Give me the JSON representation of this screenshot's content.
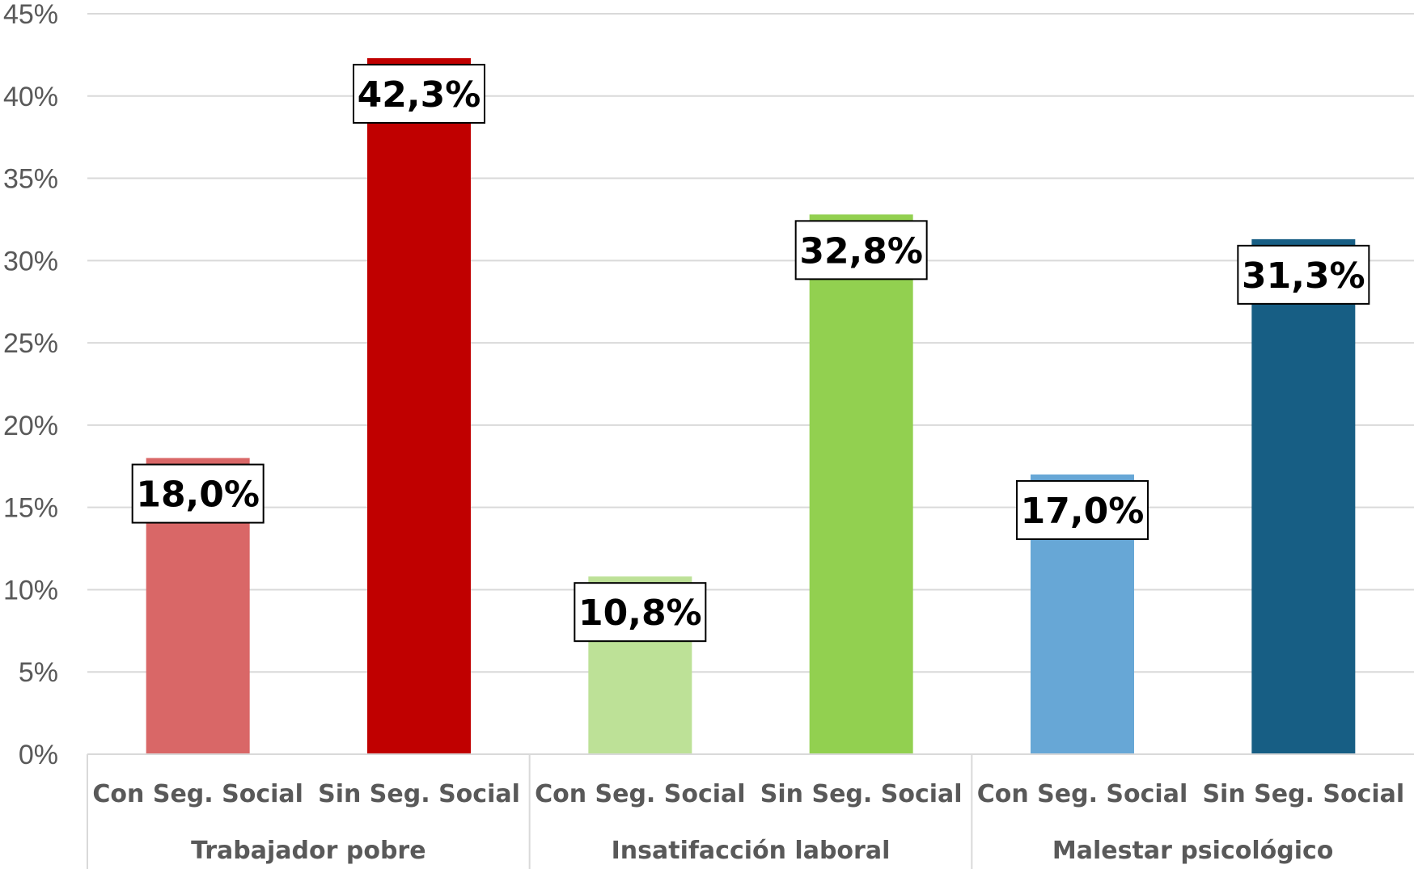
{
  "chart_data": {
    "type": "bar",
    "title": "",
    "xlabel": "",
    "ylabel": "",
    "ylim": [
      0,
      45
    ],
    "y_ticks": [
      "0%",
      "5%",
      "10%",
      "15%",
      "20%",
      "25%",
      "30%",
      "35%",
      "40%",
      "45%"
    ],
    "y_tick_values": [
      0,
      5,
      10,
      15,
      20,
      25,
      30,
      35,
      40,
      45
    ],
    "grid": true,
    "legend": "none",
    "groups": [
      {
        "label": "Trabajador pobre",
        "bars": [
          {
            "category": "Con Seg. Social",
            "value": 18.0,
            "label": "18,0%",
            "color": "#D96767"
          },
          {
            "category": "Sin Seg. Social",
            "value": 42.3,
            "label": "42,3%",
            "color": "#C00000"
          }
        ]
      },
      {
        "label": "Insatifacción laboral",
        "bars": [
          {
            "category": "Con Seg. Social",
            "value": 10.8,
            "label": "10,8%",
            "color": "#BDE197"
          },
          {
            "category": "Sin Seg. Social",
            "value": 32.8,
            "label": "32,8%",
            "color": "#92D050"
          }
        ]
      },
      {
        "label": "Malestar psicológico",
        "bars": [
          {
            "category": "Con Seg. Social",
            "value": 17.0,
            "label": "17,0%",
            "color": "#67A7D6"
          },
          {
            "category": "Sin Seg. Social",
            "value": 31.3,
            "label": "31,3%",
            "color": "#175E84"
          }
        ]
      }
    ],
    "colors": {
      "gridline": "#D9D9D9",
      "axis": "#D9D9D9",
      "tick_text": "#595959",
      "label_box_border": "#000000",
      "label_box_fill": "#FFFFFF"
    }
  }
}
